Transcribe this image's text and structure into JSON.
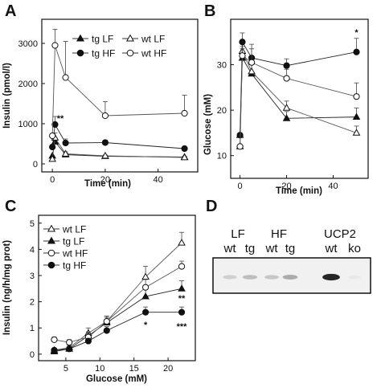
{
  "chart_data": [
    {
      "panel_label": "A",
      "type": "line",
      "xlabel": "Time (min)",
      "ylabel": "Insulin (pmol/l)",
      "xlim": [
        -4,
        55
      ],
      "ylim": [
        -200,
        3600
      ],
      "xticks": [
        0,
        20,
        40
      ],
      "yticks": [
        0,
        1000,
        2000,
        3000
      ],
      "legend": {
        "placement": "top-right",
        "columns": 2
      },
      "series": [
        {
          "name": "tg LF",
          "marker": "triangle",
          "fill": "filled",
          "x": [
            0,
            1,
            5,
            20,
            50
          ],
          "y": [
            200,
            550,
            230,
            190,
            170
          ],
          "err": [
            0,
            100,
            40,
            20,
            20
          ]
        },
        {
          "name": "wt LF",
          "marker": "triangle",
          "fill": "open",
          "x": [
            0,
            1,
            5,
            20,
            50
          ],
          "y": [
            120,
            650,
            250,
            200,
            160
          ],
          "err": [
            0,
            120,
            50,
            20,
            20
          ]
        },
        {
          "name": "tg HF",
          "marker": "circle",
          "fill": "filled",
          "x": [
            0,
            1,
            5,
            20,
            50
          ],
          "y": [
            420,
            980,
            520,
            530,
            380
          ],
          "err": [
            0,
            200,
            100,
            60,
            50
          ]
        },
        {
          "name": "wt HF",
          "marker": "circle",
          "fill": "open",
          "x": [
            0,
            1,
            5,
            20,
            50
          ],
          "y": [
            700,
            2950,
            2150,
            1200,
            1260
          ],
          "err": [
            0,
            400,
            900,
            350,
            450
          ]
        }
      ],
      "annotations": [
        {
          "text": "**",
          "x": 3,
          "y": 1060
        }
      ]
    },
    {
      "panel_label": "B",
      "type": "line",
      "xlabel": "Time (min)",
      "ylabel": "Glucose (mM)",
      "xlim": [
        -4,
        55
      ],
      "ylim": [
        5,
        40
      ],
      "xticks": [
        0,
        20,
        40
      ],
      "yticks": [
        10,
        20,
        30
      ],
      "series": [
        {
          "name": "tg LF",
          "marker": "triangle",
          "fill": "filled",
          "x": [
            0,
            1,
            5,
            20,
            50
          ],
          "y": [
            14.5,
            31.5,
            28,
            18.2,
            18.5
          ],
          "err": [
            0,
            2,
            2,
            1.5,
            2
          ]
        },
        {
          "name": "wt LF",
          "marker": "triangle",
          "fill": "open",
          "x": [
            0,
            1,
            5,
            20,
            50
          ],
          "y": [
            12,
            33,
            28.5,
            20.5,
            15
          ],
          "err": [
            0,
            2,
            2,
            1.5,
            1.5
          ]
        },
        {
          "name": "tg HF",
          "marker": "circle",
          "fill": "filled",
          "x": [
            0,
            1,
            5,
            20,
            50
          ],
          "y": [
            14.5,
            35,
            31.5,
            29.8,
            32.8
          ],
          "err": [
            0,
            2,
            3,
            1.5,
            3
          ]
        },
        {
          "name": "wt HF",
          "marker": "circle",
          "fill": "open",
          "x": [
            0,
            1,
            5,
            20,
            50
          ],
          "y": [
            12,
            32,
            30.5,
            27,
            23
          ],
          "err": [
            0,
            2,
            3,
            2,
            3
          ]
        }
      ],
      "annotations": [
        {
          "text": "*",
          "x": 50,
          "y": 36.5
        }
      ]
    },
    {
      "panel_label": "C",
      "type": "line",
      "xlabel": "Glucose (mM)",
      "ylabel": "Insulin (ng/h/mg prot)",
      "xlim": [
        1,
        24
      ],
      "ylim": [
        -0.25,
        5.3
      ],
      "xticks": [
        5,
        10,
        15,
        20
      ],
      "yticks": [
        0,
        1,
        2,
        3,
        4,
        5
      ],
      "legend": {
        "placement": "top-left",
        "columns": 1
      },
      "series": [
        {
          "name": "wt LF",
          "marker": "triangle",
          "fill": "open",
          "x": [
            3.3,
            5.5,
            8.3,
            11,
            16.7,
            22
          ],
          "y": [
            0.15,
            0.25,
            0.8,
            1.25,
            2.95,
            4.25
          ],
          "err": [
            0.05,
            0.1,
            0.2,
            0.2,
            0.4,
            0.4
          ]
        },
        {
          "name": "tg LF",
          "marker": "triangle",
          "fill": "filled",
          "x": [
            3.3,
            5.5,
            8.3,
            11,
            16.7,
            22
          ],
          "y": [
            0.1,
            0.2,
            0.7,
            1.2,
            2.2,
            2.5
          ],
          "err": [
            0.05,
            0.1,
            0.15,
            0.2,
            0.3,
            0.3
          ]
        },
        {
          "name": "wt HF",
          "marker": "circle",
          "fill": "open",
          "x": [
            3.3,
            5.5,
            8.3,
            11,
            16.7,
            22
          ],
          "y": [
            0.55,
            0.45,
            0.65,
            1.25,
            2.55,
            3.35
          ],
          "err": [
            0.1,
            0.1,
            0.15,
            0.2,
            0.3,
            0.2
          ]
        },
        {
          "name": "tg HF",
          "marker": "circle",
          "fill": "filled",
          "x": [
            3.3,
            5.5,
            8.3,
            11,
            16.7,
            22
          ],
          "y": [
            0.15,
            0.2,
            0.5,
            0.9,
            1.6,
            1.6
          ],
          "err": [
            0.05,
            0.05,
            0.1,
            0.15,
            0.2,
            0.2
          ]
        }
      ],
      "annotations": [
        {
          "text": "**",
          "x": 22,
          "y": 2.02
        },
        {
          "text": "*",
          "x": 16.7,
          "y": 1.0
        },
        {
          "text": "***",
          "x": 22,
          "y": 0.95
        }
      ]
    }
  ],
  "panel_d": {
    "panel_label": "D",
    "groups": [
      {
        "label": "LF",
        "lanes": [
          "wt",
          "tg"
        ]
      },
      {
        "label": "HF",
        "lanes": [
          "wt",
          "tg"
        ]
      },
      {
        "label": "UCP2",
        "lanes": [
          "wt",
          "ko"
        ]
      }
    ],
    "band_intensity": [
      0.25,
      0.35,
      0.3,
      0.45,
      0.95,
      0.05
    ]
  }
}
